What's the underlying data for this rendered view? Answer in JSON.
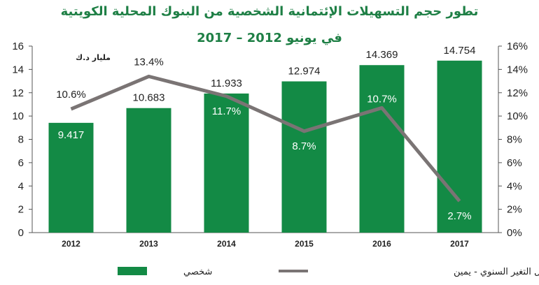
{
  "chart_data": {
    "type": "bar",
    "title": "تطور حجم التسهيلات الإئتمانية الشخصية من البنوك المحلية الكويتية",
    "subtitle": "في يونيو 2012 – 2017",
    "ylabel": "مليار د.ك",
    "categories": [
      "2012",
      "2013",
      "2014",
      "2015",
      "2016",
      "2017"
    ],
    "ylim": [
      0,
      16
    ],
    "yticks": [
      0,
      2,
      4,
      6,
      8,
      10,
      12,
      14,
      16
    ],
    "y2lim": [
      0,
      16
    ],
    "y2ticks": [
      "0%",
      "2%",
      "4%",
      "6%",
      "8%",
      "10%",
      "12%",
      "14%",
      "16%"
    ],
    "bar_series": {
      "name": "شخصي",
      "values": [
        9.417,
        10.683,
        11.933,
        12.974,
        14.369,
        14.754
      ],
      "labels": [
        "9.417",
        "10.683",
        "11.933",
        "12.974",
        "14.369",
        "14.754"
      ],
      "color": "#138a45"
    },
    "line_series": {
      "name": "معدل التغير السنوي - يمين",
      "values": [
        10.6,
        13.4,
        11.7,
        8.7,
        10.7,
        2.7
      ],
      "labels": [
        "10.6%",
        "13.4%",
        "11.7%",
        "8.7%",
        "10.7%",
        "2.7%"
      ],
      "color": "#7a7474"
    },
    "grid": false,
    "legend_position": "bottom"
  }
}
